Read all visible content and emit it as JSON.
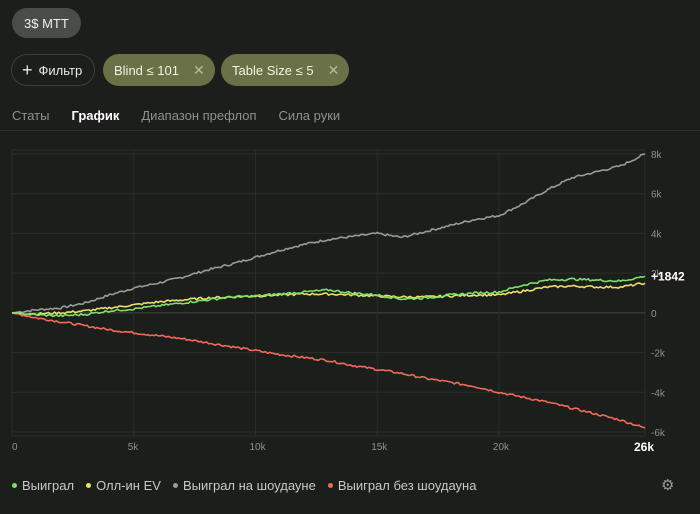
{
  "game_chip": "3$ MTT",
  "filter_button": "Фильтр",
  "filters": [
    {
      "label": "Blind ≤ 101"
    },
    {
      "label": "Table Size ≤ 5"
    }
  ],
  "tabs": [
    {
      "label": "Статы",
      "active": false
    },
    {
      "label": "График",
      "active": true
    },
    {
      "label": "Диапазон префлоп",
      "active": false
    },
    {
      "label": "Сила руки",
      "active": false
    }
  ],
  "colors": {
    "won": "#7ee06a",
    "allin_ev": "#e8e06a",
    "showdown": "#9a9a9a",
    "non_showdown": "#f06a5a"
  },
  "chart_data": {
    "type": "line",
    "x_range": [
      0,
      26000
    ],
    "y_range": [
      -6000,
      8000
    ],
    "x_ticks": [
      "0",
      "5k",
      "10k",
      "15k",
      "20k"
    ],
    "x_end_label": "26k",
    "y_ticks": [
      "8k",
      "6k",
      "4k",
      "2k",
      "0",
      "-2k",
      "-4k",
      "-6k"
    ],
    "grid": true,
    "end_value_label": "+1842",
    "series": [
      {
        "name": "Выиграл",
        "color_key": "won",
        "x": [
          0,
          1000,
          2000,
          3000,
          4000,
          5000,
          6000,
          7000,
          8000,
          9000,
          10000,
          11000,
          12000,
          13000,
          14000,
          15000,
          16000,
          17000,
          18000,
          19000,
          20000,
          21000,
          22000,
          23000,
          24000,
          25000,
          26000
        ],
        "y": [
          0,
          -100,
          -150,
          -80,
          100,
          200,
          350,
          500,
          650,
          800,
          850,
          950,
          1050,
          1150,
          1000,
          900,
          700,
          750,
          900,
          1000,
          1050,
          1400,
          1650,
          1700,
          1650,
          1600,
          1842
        ]
      },
      {
        "name": "Олл-ин EV",
        "color_key": "allin_ev",
        "x": [
          0,
          1000,
          2000,
          3000,
          4000,
          5000,
          6000,
          7000,
          8000,
          9000,
          10000,
          11000,
          12000,
          13000,
          14000,
          15000,
          16000,
          17000,
          18000,
          19000,
          20000,
          21000,
          22000,
          23000,
          24000,
          25000,
          26000
        ],
        "y": [
          0,
          -50,
          0,
          100,
          250,
          400,
          550,
          650,
          750,
          800,
          850,
          900,
          950,
          950,
          900,
          850,
          800,
          800,
          850,
          900,
          900,
          1100,
          1300,
          1350,
          1300,
          1300,
          1500
        ]
      },
      {
        "name": "Выиграл на шоудауне",
        "color_key": "showdown",
        "x": [
          0,
          1000,
          2000,
          3000,
          4000,
          5000,
          6000,
          7000,
          8000,
          9000,
          10000,
          11000,
          12000,
          13000,
          14000,
          15000,
          16000,
          17000,
          18000,
          19000,
          20000,
          21000,
          22000,
          23000,
          24000,
          25000,
          26000
        ],
        "y": [
          0,
          150,
          250,
          500,
          900,
          1250,
          1500,
          1800,
          2150,
          2450,
          2800,
          3150,
          3450,
          3700,
          3850,
          4000,
          3800,
          4100,
          4400,
          4700,
          4900,
          5500,
          6200,
          6800,
          7100,
          7400,
          8000
        ]
      },
      {
        "name": "Выиграл без шоудауна",
        "color_key": "non_showdown",
        "x": [
          0,
          1000,
          2000,
          3000,
          4000,
          5000,
          6000,
          7000,
          8000,
          9000,
          10000,
          11000,
          12000,
          13000,
          14000,
          15000,
          16000,
          17000,
          18000,
          19000,
          20000,
          21000,
          22000,
          23000,
          24000,
          25000,
          26000
        ],
        "y": [
          0,
          -250,
          -450,
          -650,
          -850,
          -1000,
          -1150,
          -1300,
          -1500,
          -1700,
          -1900,
          -2100,
          -2250,
          -2400,
          -2650,
          -2850,
          -3050,
          -3300,
          -3500,
          -3700,
          -4000,
          -4250,
          -4500,
          -4800,
          -5100,
          -5400,
          -5800
        ]
      }
    ]
  }
}
